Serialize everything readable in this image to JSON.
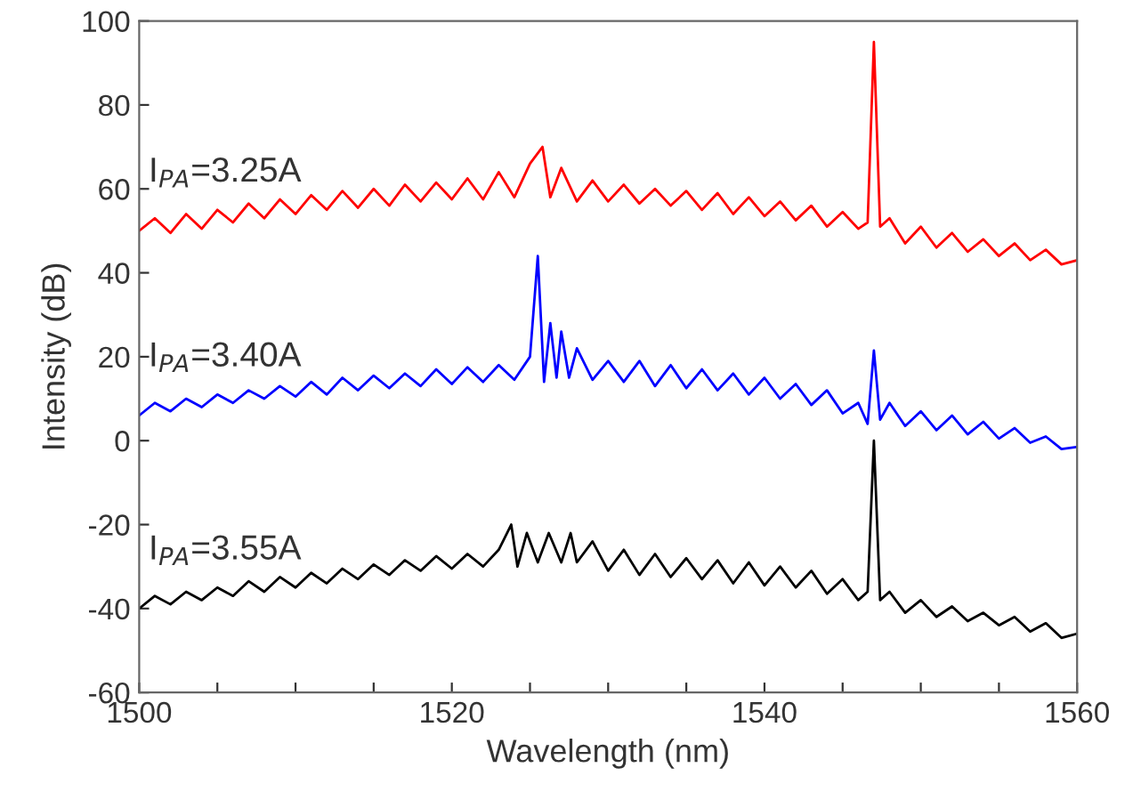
{
  "chart_data": {
    "type": "line",
    "xlabel": "Wavelength (nm)",
    "ylabel": "Intensity (dB)",
    "xlim": [
      1500,
      1560
    ],
    "ylim": [
      -60,
      100
    ],
    "xticks": [
      1500,
      {
        "value": 1505,
        "label": null
      },
      {
        "value": 1510,
        "label": null
      },
      {
        "value": 1515,
        "label": null
      },
      1520,
      {
        "value": 1525,
        "label": null
      },
      {
        "value": 1530,
        "label": null
      },
      {
        "value": 1535,
        "label": null
      },
      1540,
      {
        "value": 1545,
        "label": null
      },
      {
        "value": 1550,
        "label": null
      },
      {
        "value": 1555,
        "label": null
      },
      1560
    ],
    "yticks": [
      -60,
      -40,
      -20,
      0,
      20,
      40,
      60,
      80,
      100
    ],
    "grid": false,
    "legend": false,
    "marker": "none",
    "line_style": "solid",
    "series": [
      {
        "name": "I$_{PA}$=3.25A",
        "color": "#ff0000",
        "x": [
          1500,
          1501,
          1502,
          1503,
          1504,
          1505,
          1506,
          1507,
          1508,
          1509,
          1510,
          1511,
          1512,
          1513,
          1514,
          1515,
          1516,
          1517,
          1518,
          1519,
          1520,
          1521,
          1522,
          1523,
          1524,
          1525,
          1525.8,
          1526.3,
          1527,
          1528,
          1529,
          1530,
          1531,
          1532,
          1533,
          1534,
          1535,
          1536,
          1537,
          1538,
          1539,
          1540,
          1541,
          1542,
          1543,
          1544,
          1545,
          1546,
          1546.6,
          1547,
          1547.4,
          1548,
          1549,
          1550,
          1551,
          1552,
          1553,
          1554,
          1555,
          1556,
          1557,
          1558,
          1559,
          1560
        ],
        "values": [
          50,
          53,
          49.5,
          54,
          50.5,
          55,
          52,
          56.5,
          53,
          57.5,
          54,
          58.5,
          55,
          59.5,
          55.5,
          60,
          56,
          61,
          57,
          61.5,
          57.5,
          62.5,
          57.5,
          64,
          58,
          66,
          70,
          58,
          65,
          57,
          62,
          57,
          61,
          56.5,
          60,
          56,
          59.5,
          55,
          59,
          54,
          58,
          53.5,
          57,
          52.5,
          56,
          51,
          54.5,
          50.5,
          52,
          95,
          51,
          53,
          47,
          51,
          46,
          49.5,
          45,
          48,
          44,
          47,
          43,
          45.5,
          42,
          43
        ]
      },
      {
        "name": "I$_{PA}$=3.40A",
        "color": "#0000ff",
        "x": [
          1500,
          1501,
          1502,
          1503,
          1504,
          1505,
          1506,
          1507,
          1508,
          1509,
          1510,
          1511,
          1512,
          1513,
          1514,
          1515,
          1516,
          1517,
          1518,
          1519,
          1520,
          1521,
          1522,
          1523,
          1524,
          1525,
          1525.5,
          1525.9,
          1526.3,
          1526.7,
          1527,
          1527.5,
          1528,
          1529,
          1530,
          1531,
          1532,
          1533,
          1534,
          1535,
          1536,
          1537,
          1538,
          1539,
          1540,
          1541,
          1542,
          1543,
          1544,
          1545,
          1546,
          1546.6,
          1547,
          1547.4,
          1548,
          1549,
          1550,
          1551,
          1552,
          1553,
          1554,
          1555,
          1556,
          1557,
          1558,
          1559,
          1560
        ],
        "values": [
          6,
          9,
          7,
          10,
          8,
          11,
          9,
          12,
          10,
          13,
          10.5,
          14,
          11,
          15,
          12,
          15.5,
          12.5,
          16,
          13,
          17,
          13.5,
          17.5,
          14,
          18,
          14.5,
          20,
          44,
          14,
          28,
          15,
          26,
          15,
          22,
          14.5,
          19,
          14,
          19,
          13,
          18,
          12.5,
          17,
          12,
          16,
          11,
          15,
          10,
          13.5,
          8.5,
          12,
          6.5,
          9,
          4,
          21.5,
          5,
          9,
          3.5,
          7,
          2.5,
          6,
          1.5,
          4.5,
          0.5,
          3,
          -0.5,
          1,
          -2,
          -1.5
        ]
      },
      {
        "name": "I$_{PA}$=3.55A",
        "color": "#000000",
        "x": [
          1500,
          1501,
          1502,
          1503,
          1504,
          1505,
          1506,
          1507,
          1508,
          1509,
          1510,
          1511,
          1512,
          1513,
          1514,
          1515,
          1516,
          1517,
          1518,
          1519,
          1520,
          1521,
          1522,
          1523,
          1523.8,
          1524.2,
          1524.8,
          1525.5,
          1526.2,
          1527,
          1527.6,
          1528,
          1529,
          1530,
          1531,
          1532,
          1533,
          1534,
          1535,
          1536,
          1537,
          1538,
          1539,
          1540,
          1541,
          1542,
          1543,
          1544,
          1545,
          1546,
          1546.6,
          1547,
          1547.4,
          1548,
          1549,
          1550,
          1551,
          1552,
          1553,
          1554,
          1555,
          1556,
          1557,
          1558,
          1559,
          1560
        ],
        "values": [
          -40,
          -37,
          -39,
          -36,
          -38,
          -35,
          -37,
          -33.5,
          -36,
          -32.5,
          -35,
          -31.5,
          -34,
          -30.5,
          -33,
          -29.5,
          -32,
          -28.5,
          -31,
          -27.5,
          -30.5,
          -27,
          -30,
          -26,
          -20,
          -30,
          -22,
          -29,
          -22,
          -29,
          -22,
          -29,
          -24,
          -31,
          -26,
          -32,
          -27,
          -32.5,
          -28,
          -33,
          -28.5,
          -34,
          -29,
          -34.5,
          -30,
          -35,
          -31,
          -36.5,
          -33,
          -38,
          -36,
          0,
          -38,
          -36,
          -41,
          -38,
          -42,
          -39.5,
          -43,
          -41,
          -44,
          -42,
          -45.5,
          -43.5,
          -47,
          -46
        ]
      }
    ]
  }
}
